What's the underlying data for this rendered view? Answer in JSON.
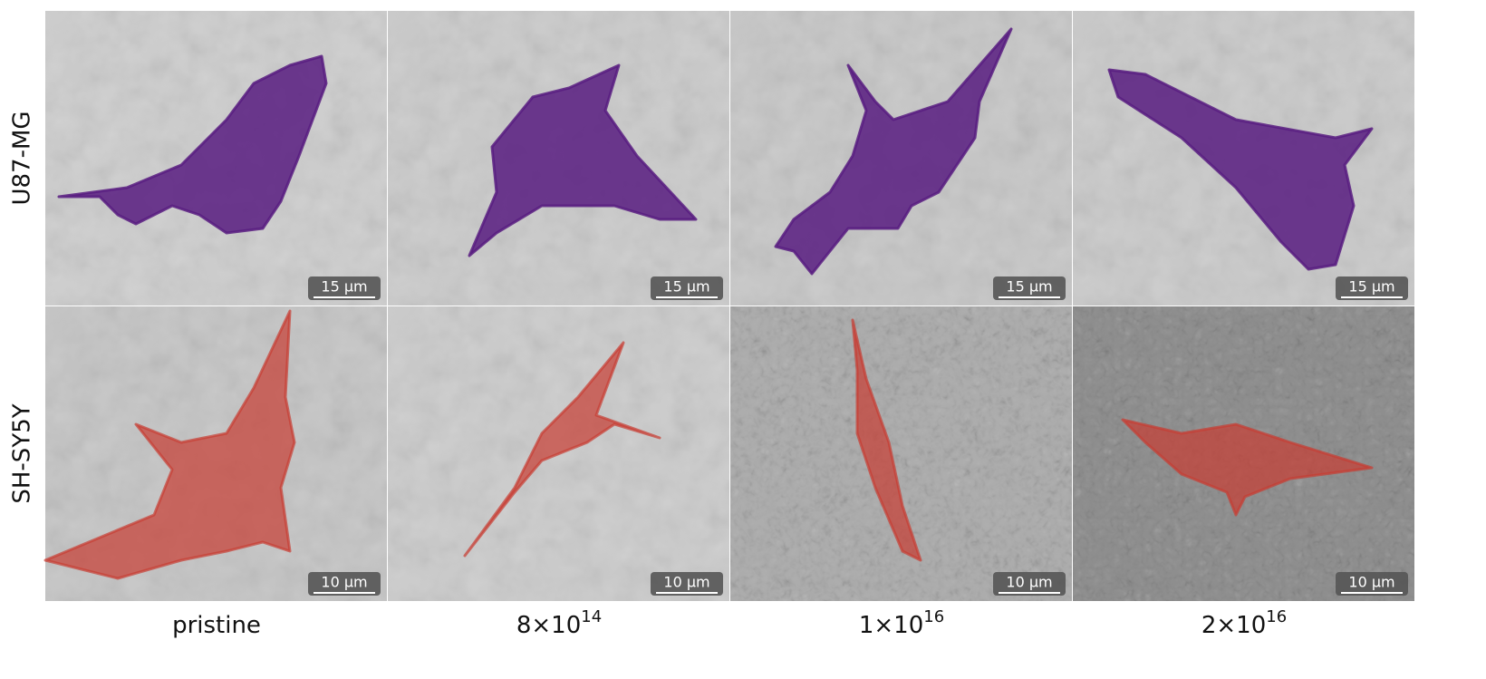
{
  "rows": [
    {
      "label": "U87-MG",
      "scale_bar": "15 µm"
    },
    {
      "label": "SH-SY5Y",
      "scale_bar": "10 µm"
    }
  ],
  "columns": [
    {
      "label": "pristine"
    },
    {
      "base": "8×10",
      "exponent": "14"
    },
    {
      "base": "1×10",
      "exponent": "16"
    },
    {
      "base": "2×10",
      "exponent": "16"
    }
  ]
}
